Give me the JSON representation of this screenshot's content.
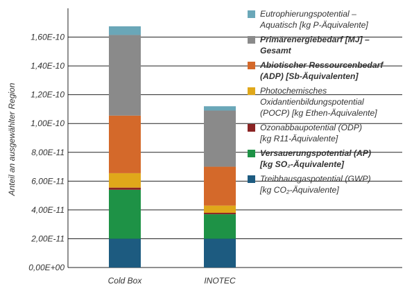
{
  "chart_data": {
    "type": "bar",
    "stacked": true,
    "ylabel": "Anteil an ausgewählter Region",
    "xlabel": "",
    "ylim": [
      0,
      1.8e-10
    ],
    "y_ticks": [
      0,
      2e-11,
      4e-11,
      6e-11,
      8e-11,
      1e-10,
      1.2e-10,
      1.4e-10,
      1.6e-10
    ],
    "y_tick_labels": [
      "0,00E+00",
      "2,00E-11",
      "4,00E-11",
      "6,00E-11",
      "8,00E-11",
      "1,00E-10",
      "1,20E-10",
      "1,40E-10",
      "1,60E-10"
    ],
    "grid": "horizontal",
    "legend_position": "right",
    "categories": [
      "Cold Box",
      "INOTEC"
    ],
    "series": [
      {
        "name_lines": [
          "Treibhausgaspotential (GWP)",
          "[kg CO₂-Äquivalente]"
        ],
        "bold": false,
        "color": "#1d5b80",
        "values": [
          2e-11,
          2e-11
        ]
      },
      {
        "name_lines": [
          "Versauerungspotential (AP)",
          "[kg SO₂-Äquivalente]"
        ],
        "bold": true,
        "color": "#1e9246",
        "values": [
          3.4e-11,
          1.7e-11
        ]
      },
      {
        "name_lines": [
          "Ozonabbaupotential (ODP)",
          "[kg R11-Äquivalente]"
        ],
        "bold": false,
        "color": "#8a2323",
        "values": [
          1.5e-12,
          1e-12
        ]
      },
      {
        "name_lines": [
          "Photochemisches",
          "Oxidantienbildungspotential",
          "(POCP) [kg Ethen-Äquivalente]"
        ],
        "bold": false,
        "color": "#e0a81a",
        "values": [
          1e-11,
          5e-12
        ]
      },
      {
        "name_lines": [
          "Abiotischer Ressourcenbedarf",
          "(ADP) [Sb-Äquivalenten]"
        ],
        "bold": true,
        "color": "#d4692a",
        "values": [
          4e-11,
          2.7e-11
        ]
      },
      {
        "name_lines": [
          "Primärenergiebedarf [MJ] –",
          "Gesamt"
        ],
        "bold": true,
        "color": "#8a8a8a",
        "values": [
          5.6e-11,
          3.9e-11
        ]
      },
      {
        "name_lines": [
          "Eutrophierungspotential –",
          "Aquatisch [kg P-Äquivalente]"
        ],
        "bold": false,
        "color": "#6aa7b8",
        "values": [
          6e-12,
          3e-12
        ]
      }
    ]
  }
}
